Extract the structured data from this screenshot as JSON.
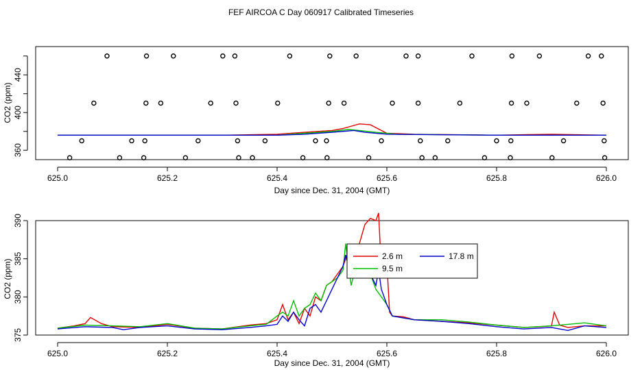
{
  "title": "FEF AIRCOA C  Day 060917  Calibrated Timeseries",
  "colors": {
    "series_1": "#e00000",
    "series_2": "#00bb00",
    "series_3": "#0000cc"
  },
  "chart_data": [
    {
      "type": "line",
      "xlabel": "Day since Dec. 31, 2004 (GMT)",
      "ylabel": "CO2 (ppm)",
      "xlim": [
        625.0,
        626.0
      ],
      "ylim": [
        350,
        470
      ],
      "xticks": [
        "625.0",
        "625.2",
        "625.4",
        "625.6",
        "625.8",
        "626.0"
      ],
      "xtick_values": [
        625.0,
        625.2,
        625.4,
        625.6,
        625.8,
        626.0
      ],
      "yticks": [
        "360",
        "400",
        "440"
      ],
      "ytick_values": [
        360,
        400,
        440
      ],
      "yticks_unlabeled": [
        380,
        420,
        460
      ],
      "grid": false,
      "lines": [
        {
          "color": "#e00000",
          "points": [
            [
              625.0,
              376
            ],
            [
              625.3,
              376
            ],
            [
              625.4,
              377
            ],
            [
              625.45,
              379
            ],
            [
              625.5,
              381
            ],
            [
              625.52,
              383
            ],
            [
              625.55,
              388
            ],
            [
              625.57,
              387
            ],
            [
              625.6,
              378
            ],
            [
              625.65,
              377
            ],
            [
              625.8,
              376
            ],
            [
              625.9,
              377
            ],
            [
              626.0,
              376
            ]
          ]
        },
        {
          "color": "#00bb00",
          "points": [
            [
              625.0,
              376
            ],
            [
              625.3,
              376
            ],
            [
              625.4,
              376
            ],
            [
              625.45,
              378
            ],
            [
              625.5,
              380
            ],
            [
              625.53,
              382
            ],
            [
              625.55,
              381
            ],
            [
              625.58,
              379
            ],
            [
              625.62,
              377
            ],
            [
              625.8,
              376
            ],
            [
              626.0,
              376
            ]
          ]
        },
        {
          "color": "#0000cc",
          "points": [
            [
              625.0,
              376
            ],
            [
              625.3,
              376
            ],
            [
              625.4,
              376
            ],
            [
              625.45,
              377
            ],
            [
              625.5,
              379
            ],
            [
              625.54,
              381
            ],
            [
              625.56,
              379
            ],
            [
              625.6,
              377
            ],
            [
              625.8,
              376
            ],
            [
              626.0,
              376
            ]
          ]
        }
      ],
      "scatter": {
        "marker": "open-circle",
        "points": [
          [
            625.09,
            460
          ],
          [
            625.162,
            460
          ],
          [
            625.211,
            460
          ],
          [
            625.301,
            460
          ],
          [
            625.323,
            460
          ],
          [
            625.423,
            460
          ],
          [
            625.496,
            460
          ],
          [
            625.544,
            460
          ],
          [
            625.635,
            460
          ],
          [
            625.657,
            460
          ],
          [
            625.755,
            460
          ],
          [
            625.828,
            460
          ],
          [
            625.878,
            460
          ],
          [
            625.967,
            460
          ],
          [
            625.991,
            460
          ],
          [
            625.066,
            410
          ],
          [
            625.161,
            410
          ],
          [
            625.188,
            410
          ],
          [
            625.279,
            410
          ],
          [
            625.325,
            410
          ],
          [
            625.401,
            410
          ],
          [
            625.494,
            410
          ],
          [
            625.522,
            410
          ],
          [
            625.61,
            410
          ],
          [
            625.657,
            410
          ],
          [
            625.733,
            410
          ],
          [
            625.827,
            410
          ],
          [
            625.855,
            410
          ],
          [
            625.946,
            410
          ],
          [
            625.994,
            410
          ],
          [
            625.044,
            370
          ],
          [
            625.135,
            370
          ],
          [
            625.159,
            370
          ],
          [
            625.256,
            370
          ],
          [
            625.328,
            370
          ],
          [
            625.378,
            370
          ],
          [
            625.47,
            370
          ],
          [
            625.49,
            370
          ],
          [
            625.59,
            370
          ],
          [
            625.661,
            370
          ],
          [
            625.711,
            370
          ],
          [
            625.8,
            370
          ],
          [
            625.826,
            370
          ],
          [
            625.922,
            370
          ],
          [
            625.996,
            370
          ],
          [
            625.022,
            352
          ],
          [
            625.113,
            352
          ],
          [
            625.157,
            352
          ],
          [
            625.233,
            352
          ],
          [
            625.33,
            352
          ],
          [
            625.355,
            352
          ],
          [
            625.447,
            352
          ],
          [
            625.491,
            352
          ],
          [
            625.567,
            352
          ],
          [
            625.664,
            352
          ],
          [
            625.688,
            352
          ],
          [
            625.778,
            352
          ],
          [
            625.825,
            352
          ],
          [
            625.901,
            352
          ],
          [
            625.997,
            352
          ]
        ]
      }
    },
    {
      "type": "line",
      "xlabel": "Day since Dec. 31, 2004 (GMT)",
      "ylabel": "CO2 (ppm)",
      "xlim": [
        625.0,
        626.0
      ],
      "ylim": [
        375,
        390
      ],
      "xticks": [
        "625.0",
        "625.2",
        "625.4",
        "625.6",
        "625.8",
        "626.0"
      ],
      "xtick_values": [
        625.0,
        625.2,
        625.4,
        625.6,
        625.8,
        626.0
      ],
      "yticks": [
        "375",
        "380",
        "385",
        "390"
      ],
      "ytick_values": [
        375,
        380,
        385,
        390
      ],
      "grid": false,
      "legend": {
        "position": "top-center",
        "columns": 2
      },
      "series": [
        {
          "name": "2.6 m",
          "color": "#e00000",
          "points": [
            [
              625.0,
              375.9
            ],
            [
              625.03,
              376.2
            ],
            [
              625.05,
              376.5
            ],
            [
              625.06,
              377.3
            ],
            [
              625.08,
              376.5
            ],
            [
              625.1,
              376.1
            ],
            [
              625.15,
              376.0
            ],
            [
              625.2,
              376.4
            ],
            [
              625.25,
              375.9
            ],
            [
              625.3,
              375.8
            ],
            [
              625.35,
              376.3
            ],
            [
              625.38,
              376.5
            ],
            [
              625.4,
              377.0
            ],
            [
              625.41,
              379.0
            ],
            [
              625.42,
              377.0
            ],
            [
              625.43,
              378.0
            ],
            [
              625.44,
              376.5
            ],
            [
              625.45,
              378.5
            ],
            [
              625.46,
              377.5
            ],
            [
              625.47,
              380.0
            ],
            [
              625.48,
              379.5
            ],
            [
              625.49,
              381.5
            ],
            [
              625.5,
              382.0
            ],
            [
              625.51,
              383.0
            ],
            [
              625.52,
              384.0
            ],
            [
              625.53,
              386.0
            ],
            [
              625.54,
              385.5
            ],
            [
              625.55,
              387.0
            ],
            [
              625.56,
              389.5
            ],
            [
              625.57,
              390.3
            ],
            [
              625.58,
              390.0
            ],
            [
              625.585,
              391.0
            ],
            [
              625.59,
              383.5
            ],
            [
              625.6,
              384.5
            ],
            [
              625.605,
              378.0
            ],
            [
              625.61,
              377.5
            ],
            [
              625.63,
              377.4
            ],
            [
              625.65,
              377.0
            ],
            [
              625.7,
              376.8
            ],
            [
              625.75,
              376.6
            ],
            [
              625.8,
              376.3
            ],
            [
              625.85,
              376.0
            ],
            [
              625.88,
              376.1
            ],
            [
              625.9,
              376.2
            ],
            [
              625.905,
              378.0
            ],
            [
              625.915,
              376.3
            ],
            [
              625.93,
              376.0
            ],
            [
              625.96,
              376.2
            ],
            [
              626.0,
              376.2
            ]
          ]
        },
        {
          "name": "9.5 m",
          "color": "#00bb00",
          "points": [
            [
              625.0,
              375.9
            ],
            [
              625.05,
              376.3
            ],
            [
              625.1,
              376.2
            ],
            [
              625.15,
              376.1
            ],
            [
              625.2,
              376.5
            ],
            [
              625.25,
              375.9
            ],
            [
              625.3,
              375.8
            ],
            [
              625.35,
              376.2
            ],
            [
              625.38,
              376.4
            ],
            [
              625.4,
              377.5
            ],
            [
              625.41,
              378.0
            ],
            [
              625.42,
              377.5
            ],
            [
              625.43,
              379.5
            ],
            [
              625.44,
              377.5
            ],
            [
              625.45,
              378.5
            ],
            [
              625.46,
              379.0
            ],
            [
              625.47,
              380.5
            ],
            [
              625.48,
              379.5
            ],
            [
              625.49,
              381.5
            ],
            [
              625.5,
              382.0
            ],
            [
              625.51,
              382.5
            ],
            [
              625.52,
              383.5
            ],
            [
              625.525,
              387.0
            ],
            [
              625.53,
              384.0
            ],
            [
              625.535,
              381.5
            ],
            [
              625.54,
              383.0
            ],
            [
              625.55,
              387.0
            ],
            [
              625.56,
              385.0
            ],
            [
              625.57,
              383.0
            ],
            [
              625.58,
              381.0
            ],
            [
              625.6,
              379.0
            ],
            [
              625.61,
              377.5
            ],
            [
              625.65,
              377.0
            ],
            [
              625.7,
              377.0
            ],
            [
              625.75,
              376.7
            ],
            [
              625.8,
              376.3
            ],
            [
              625.85,
              376.0
            ],
            [
              625.9,
              376.2
            ],
            [
              625.96,
              376.6
            ],
            [
              626.0,
              376.2
            ]
          ]
        },
        {
          "name": "17.8 m",
          "color": "#0000cc",
          "points": [
            [
              625.0,
              375.8
            ],
            [
              625.05,
              376.1
            ],
            [
              625.1,
              376.0
            ],
            [
              625.12,
              375.7
            ],
            [
              625.15,
              376.0
            ],
            [
              625.2,
              376.2
            ],
            [
              625.25,
              375.8
            ],
            [
              625.3,
              375.7
            ],
            [
              625.35,
              376.0
            ],
            [
              625.38,
              376.2
            ],
            [
              625.4,
              376.4
            ],
            [
              625.41,
              377.5
            ],
            [
              625.42,
              376.8
            ],
            [
              625.43,
              378.0
            ],
            [
              625.44,
              377.0
            ],
            [
              625.45,
              376.2
            ],
            [
              625.46,
              378.5
            ],
            [
              625.47,
              379.0
            ],
            [
              625.48,
              378.0
            ],
            [
              625.49,
              379.5
            ],
            [
              625.5,
              381.0
            ],
            [
              625.51,
              382.5
            ],
            [
              625.52,
              384.0
            ],
            [
              625.525,
              385.5
            ],
            [
              625.53,
              384.0
            ],
            [
              625.54,
              383.0
            ],
            [
              625.55,
              385.5
            ],
            [
              625.56,
              384.0
            ],
            [
              625.57,
              383.0
            ],
            [
              625.58,
              381.5
            ],
            [
              625.585,
              383.5
            ],
            [
              625.59,
              381.0
            ],
            [
              625.6,
              379.0
            ],
            [
              625.61,
              377.5
            ],
            [
              625.65,
              377.0
            ],
            [
              625.7,
              376.8
            ],
            [
              625.75,
              376.5
            ],
            [
              625.8,
              376.1
            ],
            [
              625.85,
              375.8
            ],
            [
              625.9,
              376.0
            ],
            [
              625.93,
              375.6
            ],
            [
              625.96,
              376.2
            ],
            [
              626.0,
              376.0
            ]
          ]
        }
      ]
    }
  ]
}
